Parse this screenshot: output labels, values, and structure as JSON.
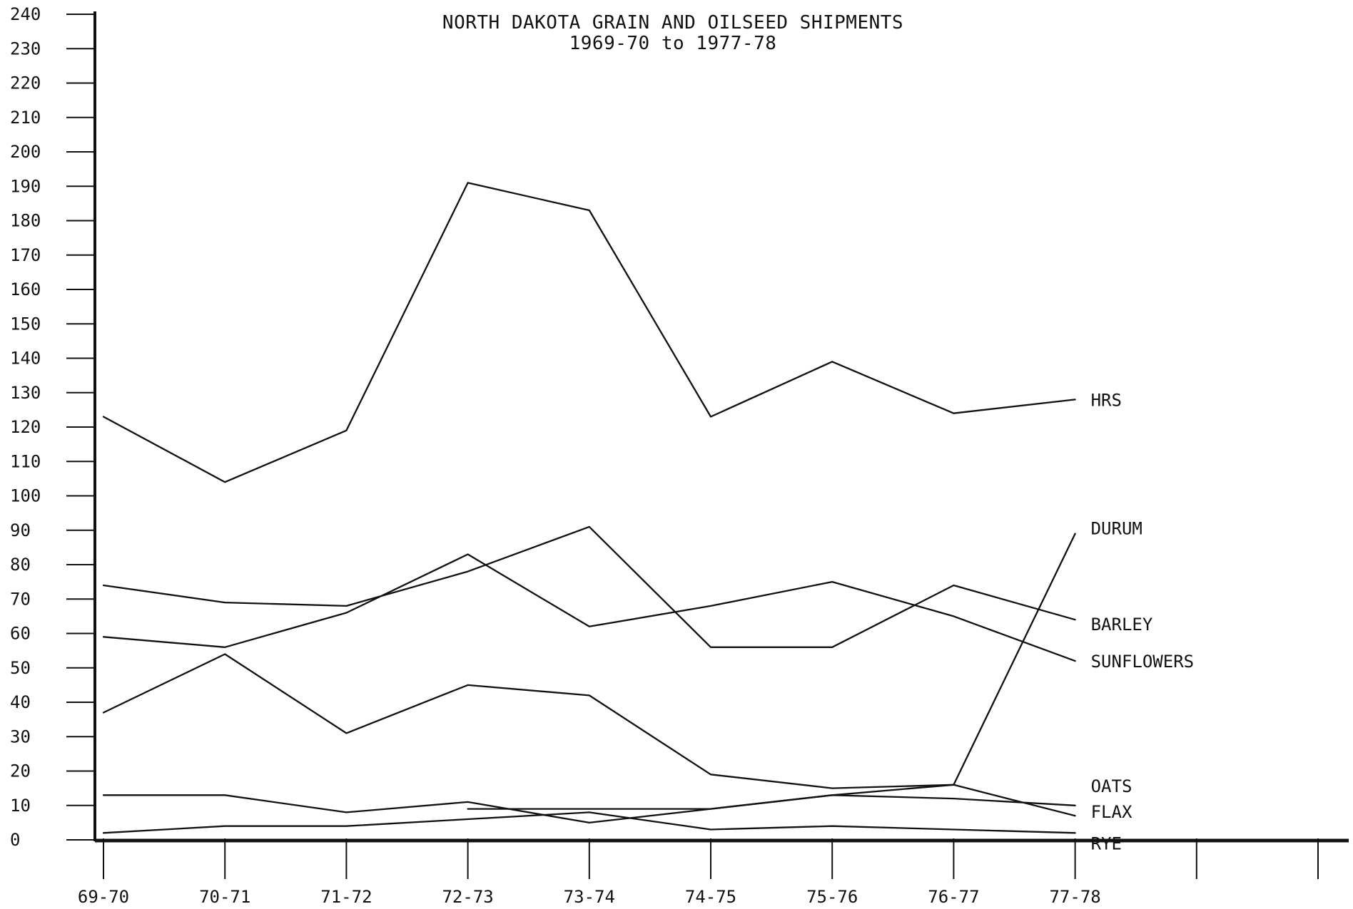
{
  "chart_data": {
    "type": "line",
    "title": "NORTH DAKOTA GRAIN AND OILSEED SHIPMENTS",
    "subtitle": "1969-70 to 1977-78",
    "xlabel": "",
    "ylabel": "",
    "categories": [
      "69-70",
      "70-71",
      "71-72",
      "72-73",
      "73-74",
      "74-75",
      "75-76",
      "76-77",
      "77-78"
    ],
    "ylim": [
      0,
      240
    ],
    "y_ticks": [
      0,
      10,
      20,
      30,
      40,
      50,
      60,
      70,
      80,
      90,
      100,
      110,
      120,
      130,
      140,
      150,
      160,
      170,
      180,
      190,
      200,
      210,
      220,
      230,
      240
    ],
    "grid": false,
    "legend": "series labels at right end of lines",
    "series": [
      {
        "name": "HRS",
        "values": [
          123,
          104,
          119,
          191,
          183,
          123,
          139,
          124,
          128
        ]
      },
      {
        "name": "DURUM",
        "values": [
          37,
          54,
          31,
          45,
          42,
          19,
          15,
          16,
          89
        ]
      },
      {
        "name": "BARLEY",
        "values": [
          74,
          69,
          68,
          78,
          91,
          56,
          56,
          74,
          64
        ]
      },
      {
        "name": "SUNFLOWERS",
        "values": [
          59,
          56,
          66,
          83,
          62,
          68,
          75,
          65,
          52
        ]
      },
      {
        "name": "OATS",
        "values": [
          13,
          13,
          8,
          11,
          5,
          9,
          13,
          12,
          10
        ]
      },
      {
        "name": "FLAX",
        "values": [
          null,
          null,
          null,
          9,
          9,
          9,
          13,
          16,
          7
        ]
      },
      {
        "name": "RYE",
        "values": [
          2,
          4,
          4,
          6,
          8,
          3,
          4,
          3,
          2
        ]
      }
    ]
  }
}
